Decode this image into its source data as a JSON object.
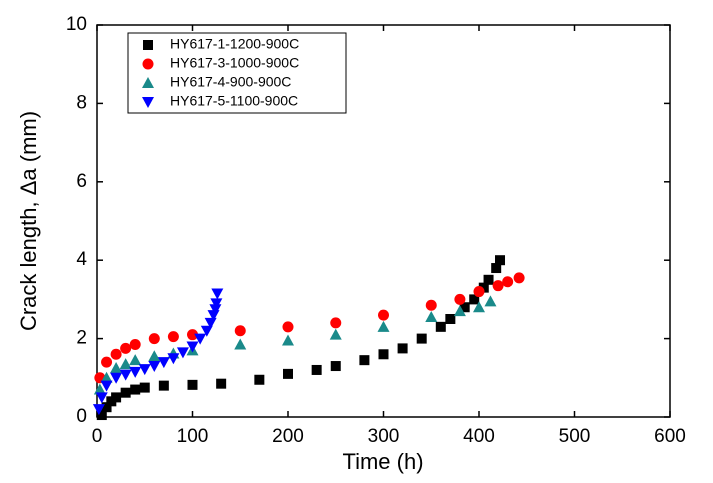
{
  "chart_data": {
    "type": "scatter",
    "xlabel": "Time (h)",
    "ylabel": "Crack length, Δa (mm)",
    "xlim": [
      0,
      600
    ],
    "xticks": [
      0,
      100,
      200,
      300,
      400,
      500,
      600
    ],
    "ylim": [
      0,
      10
    ],
    "yticks": [
      0,
      2,
      4,
      6,
      8,
      10
    ],
    "legend": "upper-left",
    "series": [
      {
        "name": "HY617-1-1200-900C",
        "color": "#000000",
        "marker": "square",
        "x": [
          5,
          10,
          15,
          20,
          30,
          40,
          50,
          70,
          100,
          130,
          170,
          200,
          230,
          250,
          280,
          300,
          320,
          340,
          360,
          370,
          385,
          395,
          405,
          410,
          418,
          422
        ],
        "values": [
          0.05,
          0.25,
          0.4,
          0.5,
          0.62,
          0.7,
          0.75,
          0.8,
          0.82,
          0.85,
          0.95,
          1.1,
          1.2,
          1.3,
          1.45,
          1.6,
          1.75,
          2.0,
          2.3,
          2.5,
          2.8,
          3.0,
          3.3,
          3.5,
          3.8,
          4.0
        ]
      },
      {
        "name": "HY617-3-1000-900C",
        "color": "#ff0000",
        "marker": "circle",
        "x": [
          3,
          10,
          20,
          30,
          40,
          60,
          80,
          100,
          150,
          200,
          250,
          300,
          350,
          380,
          400,
          420,
          430,
          442
        ],
        "values": [
          1.0,
          1.4,
          1.6,
          1.75,
          1.85,
          2.0,
          2.05,
          2.1,
          2.2,
          2.3,
          2.4,
          2.6,
          2.85,
          3.0,
          3.2,
          3.35,
          3.45,
          3.55
        ]
      },
      {
        "name": "HY617-4-900-900C",
        "color": "#1a8a8a",
        "marker": "triangle-up",
        "x": [
          3,
          10,
          20,
          30,
          40,
          60,
          80,
          100,
          150,
          200,
          250,
          300,
          350,
          380,
          400,
          412
        ],
        "values": [
          0.7,
          1.0,
          1.25,
          1.35,
          1.45,
          1.55,
          1.62,
          1.7,
          1.85,
          1.95,
          2.1,
          2.3,
          2.55,
          2.7,
          2.8,
          2.95
        ]
      },
      {
        "name": "HY617-5-1100-900C",
        "color": "#0000ff",
        "marker": "triangle-down",
        "x": [
          2,
          5,
          10,
          20,
          30,
          40,
          50,
          60,
          70,
          80,
          90,
          100,
          108,
          115,
          119,
          122,
          124,
          125,
          126
        ],
        "values": [
          0.2,
          0.5,
          0.8,
          1.0,
          1.08,
          1.15,
          1.22,
          1.3,
          1.4,
          1.5,
          1.65,
          1.8,
          2.0,
          2.2,
          2.4,
          2.6,
          2.75,
          2.9,
          3.15
        ]
      }
    ]
  }
}
